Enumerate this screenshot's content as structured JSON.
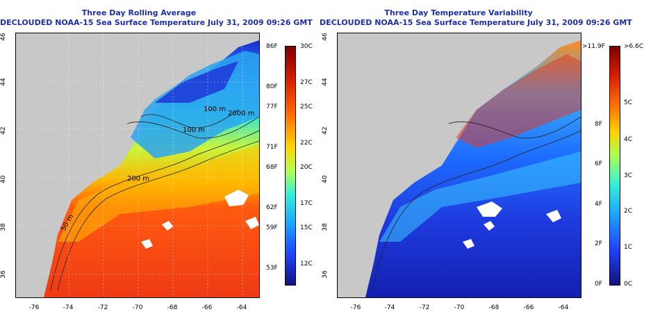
{
  "left_panel": {
    "title_line1": "Three Day Rolling Average",
    "title_line2": "DECLOUDED NOAA-15 Sea Surface Temperature July 31, 2009 09:26 GMT",
    "colorbar_f": [
      "86F",
      "80F",
      "77F",
      "71F",
      "68F",
      "62F",
      "59F",
      "53F"
    ],
    "colorbar_c": [
      "30C",
      "27C",
      "25C",
      "22C",
      "20C",
      "17C",
      "15C",
      "12C"
    ]
  },
  "right_panel": {
    "title_line1": "Three Day Temperature Variability",
    "title_line2": "DECLOUDED NOAA-15 Sea Surface Temperature July 31, 2009 09:26 GMT",
    "colorbar_f": [
      ">11.9F",
      "8F",
      "6F",
      "4F",
      "2F",
      "0F"
    ],
    "colorbar_c": [
      ">6.6C",
      "5C",
      "4C",
      "3C",
      "2C",
      "1C",
      "0C"
    ]
  },
  "latitude_labels": [
    "46",
    "44",
    "42",
    "40",
    "38",
    "36"
  ],
  "longitude_labels": [
    "-76",
    "-74",
    "-72",
    "-70",
    "-68",
    "-66",
    "-64"
  ],
  "contour_labels": [
    "100 m",
    "100 m",
    "2000 m",
    "200 m",
    "50 m"
  ]
}
